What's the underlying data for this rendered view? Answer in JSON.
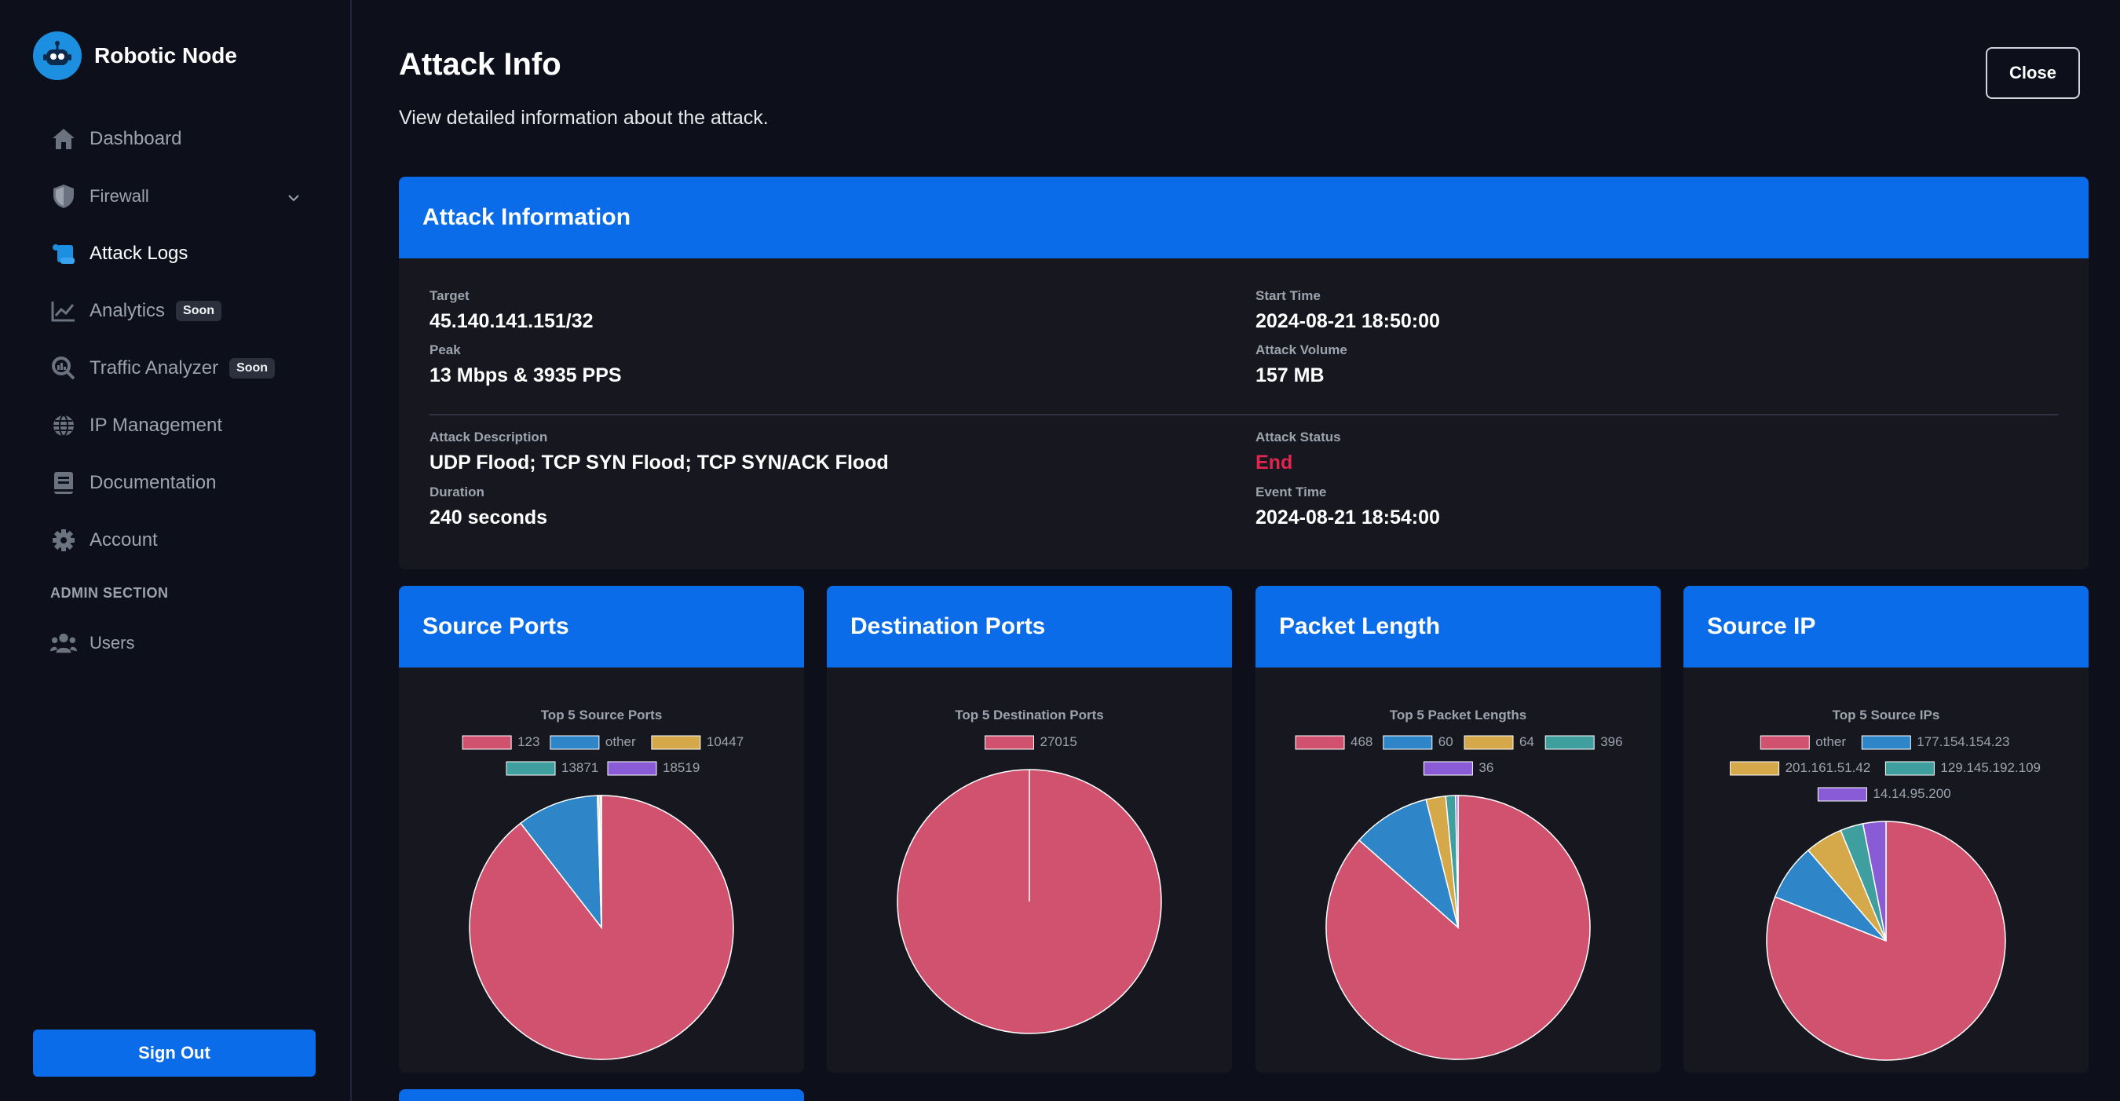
{
  "app": {
    "name": "Robotic Node"
  },
  "sidebar": {
    "items": [
      {
        "label": "Dashboard",
        "icon": "home-icon"
      },
      {
        "label": "Firewall",
        "icon": "shield-icon"
      },
      {
        "label": "Attack Logs",
        "icon": "scroll-icon",
        "active": true
      },
      {
        "label": "Analytics",
        "icon": "chart-line-icon",
        "badge": "Soon"
      },
      {
        "label": "Traffic Analyzer",
        "icon": "magnify-chart-icon",
        "badge": "Soon"
      },
      {
        "label": "IP Management",
        "icon": "globe-icon"
      },
      {
        "label": "Documentation",
        "icon": "book-icon"
      },
      {
        "label": "Account",
        "icon": "gear-icon"
      }
    ],
    "admin_section_label": "ADMIN SECTION",
    "admin_items": [
      {
        "label": "Users",
        "icon": "users-icon"
      }
    ],
    "sign_out_label": "Sign Out"
  },
  "header": {
    "title": "Attack Info",
    "subtitle": "View detailed information about the attack.",
    "close_label": "Close"
  },
  "attack_info": {
    "title": "Attack Information",
    "target_label": "Target",
    "target": "45.140.141.151/32",
    "start_time_label": "Start Time",
    "start_time": "2024-08-21 18:50:00",
    "peak_label": "Peak",
    "peak": "13 Mbps & 3935 PPS",
    "volume_label": "Attack Volume",
    "volume": "157 MB",
    "description_label": "Attack Description",
    "description": "UDP Flood; TCP SYN Flood; TCP SYN/ACK Flood",
    "status_label": "Attack Status",
    "status": "End",
    "duration_label": "Duration",
    "duration": "240 seconds",
    "event_time_label": "Event Time",
    "event_time": "2024-08-21 18:54:00"
  },
  "colors": {
    "accent": "#0a6ce8",
    "status_end": "#e3244f",
    "series": [
      "#d1526e",
      "#2e86c8",
      "#d5a94a",
      "#3f9e9e",
      "#8a5bd6"
    ]
  },
  "chart_data": [
    {
      "card_title": "Source Ports",
      "type": "pie",
      "title": "Top 5 Source Ports",
      "categories": [
        "123",
        "other",
        "10447",
        "13871",
        "18519"
      ],
      "values": [
        89.5,
        10.0,
        0.2,
        0.2,
        0.1
      ]
    },
    {
      "card_title": "Destination Ports",
      "type": "pie",
      "title": "Top 5 Destination Ports",
      "categories": [
        "27015"
      ],
      "values": [
        100
      ]
    },
    {
      "card_title": "Packet Length",
      "type": "pie",
      "title": "Top 5 Packet Lengths",
      "categories": [
        "468",
        "60",
        "64",
        "396",
        "36"
      ],
      "values": [
        86.5,
        9.6,
        2.4,
        1.2,
        0.3
      ]
    },
    {
      "card_title": "Source IP",
      "type": "pie",
      "title": "Top 5 Source IPs",
      "categories": [
        "other",
        "177.154.154.23",
        "201.161.51.42",
        "129.145.192.109",
        "14.14.95.200"
      ],
      "values": [
        81.0,
        7.7,
        5.1,
        3.1,
        3.1
      ]
    }
  ]
}
